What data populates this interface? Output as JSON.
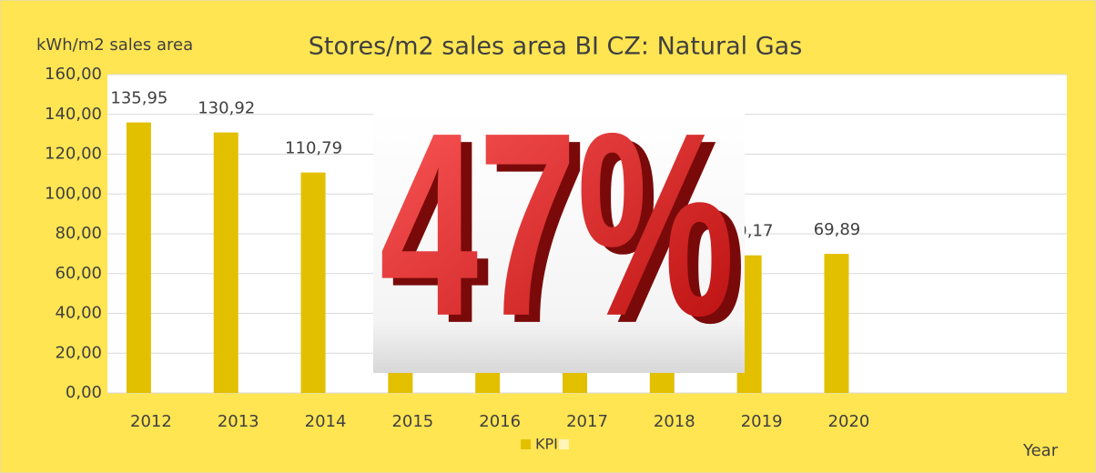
{
  "chart_data": {
    "type": "bar",
    "title": "Stores/m2 sales area BI CZ: Natural Gas",
    "y_label": "kWh/m2 sales area",
    "x_label": "Year",
    "categories": [
      "2012",
      "2013",
      "2014",
      "2015",
      "2016",
      "2017",
      "2018",
      "2019",
      "2020",
      null,
      null
    ],
    "series": [
      {
        "name": "KPI",
        "color": "#e2c000",
        "values": [
          135.95,
          130.92,
          110.79,
          101,
          92,
          85,
          78,
          69.17,
          69.89,
          null,
          null
        ],
        "value_labels": [
          "135,95",
          "130,92",
          "110,79",
          null,
          null,
          null,
          null,
          "69,17",
          "69,89",
          null,
          null
        ]
      }
    ],
    "ylim": [
      0,
      160
    ],
    "yticks": [
      {
        "value": 0,
        "label": "0,00"
      },
      {
        "value": 20,
        "label": "20,00"
      },
      {
        "value": 40,
        "label": "40,00"
      },
      {
        "value": 60,
        "label": "60,00"
      },
      {
        "value": 80,
        "label": "80,00"
      },
      {
        "value": 100,
        "label": "100,00"
      },
      {
        "value": 120,
        "label": "120,00"
      },
      {
        "value": 140,
        "label": "140,00"
      },
      {
        "value": 160,
        "label": "160,00"
      }
    ],
    "grid": true,
    "legend": "bottom",
    "overlay": "47%"
  }
}
